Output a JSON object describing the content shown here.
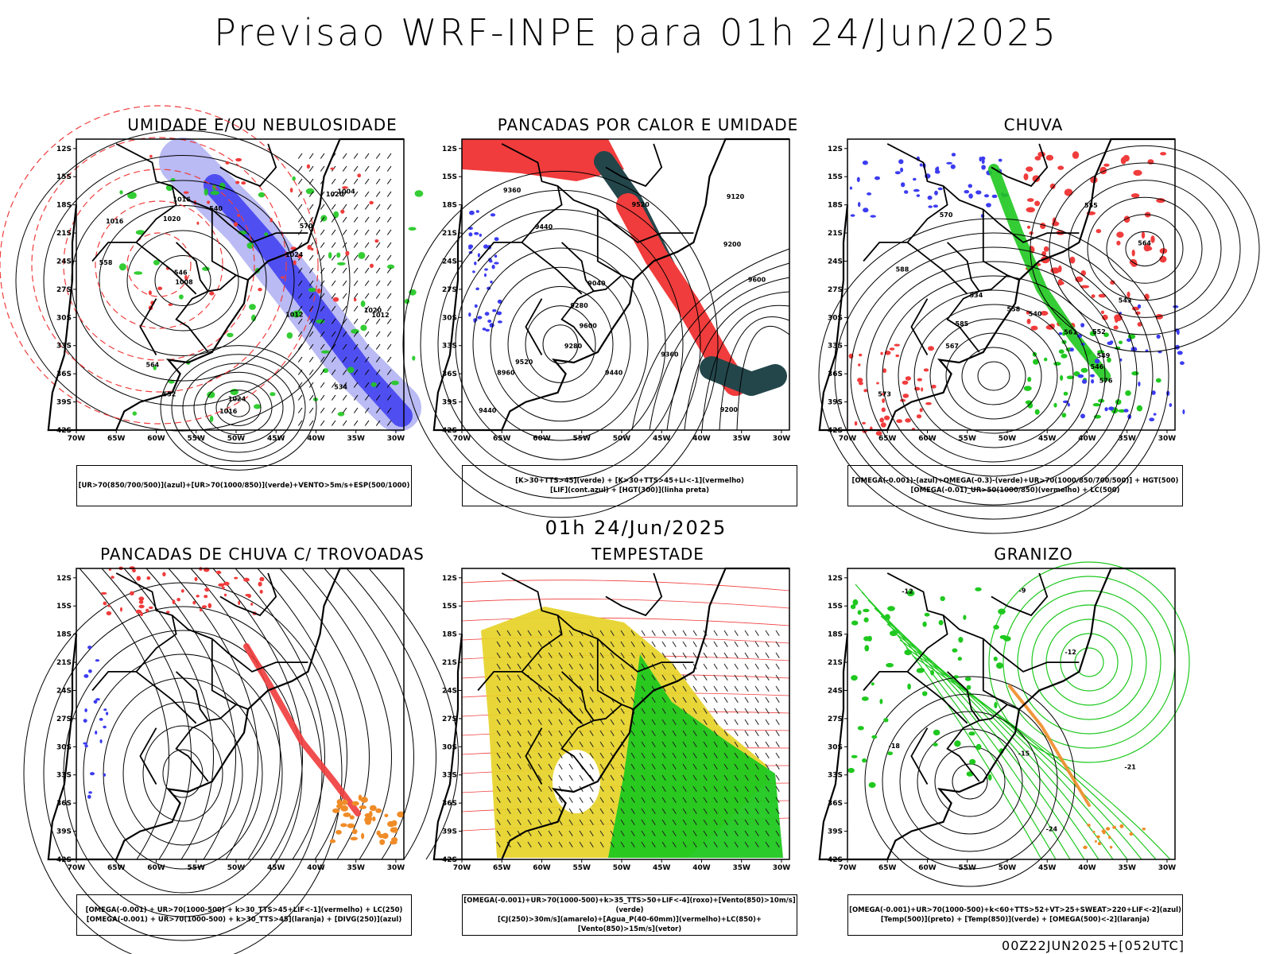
{
  "title": "Previsao WRF-INPE  para 01h 24/Jun/2025",
  "mid_title": "01h 24/Jun/2025",
  "footer": "00Z22JUN2025+[052UTC]",
  "axes": {
    "lat_labels": [
      "12S",
      "15S",
      "18S",
      "21S",
      "24S",
      "27S",
      "30S",
      "33S",
      "36S",
      "39S",
      "42S"
    ],
    "lon_labels": [
      "70W",
      "65W",
      "60W",
      "55W",
      "50W",
      "45W",
      "40W",
      "35W",
      "30W"
    ]
  },
  "colors": {
    "red": "#f03c3c",
    "green": "#1fc81f",
    "blue": "#3c3cf0",
    "lightblue": "#9c9cf0",
    "yellow": "#e6d228",
    "darkteal": "#23464b",
    "orange": "#f08c28"
  },
  "panels": [
    {
      "title": "UMIDADE E/OU NEBULOSIDADE",
      "legend": [
        "[UR>70(850/700/500)](azul)+[UR>70(1000/850)](verde)+VENTO>5m/s+ESP(500/1000)"
      ],
      "contour_labels": [
        "1016",
        "1020",
        "1024",
        "1024",
        "1020",
        "1016",
        "1012",
        "1008",
        "1004",
        "1012",
        "1020",
        "1016",
        "570",
        "564",
        "558",
        "552",
        "546",
        "540",
        "534"
      ]
    },
    {
      "title": "PANCADAS POR CALOR E UMIDADE",
      "legend": [
        "[K>30+TTS>45](verde) + [K>30+TTS>45+LI<-1](vermelho)",
        "[LIF](cont.azul) + [HGT(300)](linha preta)"
      ],
      "contour_labels": [
        "9600",
        "9520",
        "9440",
        "9360",
        "9280",
        "9200",
        "9120",
        "9040",
        "8960",
        "9440",
        "9520",
        "9600",
        "9280",
        "9200",
        "9360",
        "9440"
      ]
    },
    {
      "title": "CHUVA",
      "legend": [
        "[OMEGA(-0.001)-(azul)+OMEGA(-0.3)-(verde)+UR>70(1000/850/700/500)] + HGT(500)",
        "[OMEGA(-0.01)_UR>50(1000/850)(vermelho) + LC(500)"
      ],
      "contour_labels": [
        "576",
        "573",
        "570",
        "567",
        "564",
        "561",
        "558",
        "555",
        "552",
        "549",
        "546",
        "543",
        "540",
        "534",
        "585",
        "588"
      ]
    },
    {
      "title": "PANCADAS DE CHUVA C/ TROVOADAS",
      "legend": [
        "[OMEGA(-0.001) + UR>70(1000-500) + k>30_TTS>45+LIF<-1](vermelho) + LC(250)",
        "[OMEGA(-0.001) + UR>70(1000-500) + k>30_TTS>45](laranja) + [DIVG(250)](azul)"
      ],
      "contour_labels": []
    },
    {
      "title": "TEMPESTADE",
      "legend": [
        "[OMEGA(-0.001)+UR>70(1000-500)+k>35_TTS>50+LIF<-4](roxo)+[Vento(850)>10m/s](verde)",
        "[CJ(250)>30m/s](amarelo)+[Agua_P(40-60mm)](vermelho)+LC(850)+[Vento(850)>15m/s](vetor)"
      ],
      "contour_labels": []
    },
    {
      "title": "GRANIZO",
      "legend": [
        "[OMEGA(-0.001)+UR>70(1000-500)+k<60+TTS>52+VT>25+SWEAT>220+LIF<-2](azul)",
        "[Temp(500)](preto) + [Temp(850)](verde) + [OMEGA(500)<-2](laranja)"
      ],
      "contour_labels": [
        "-12",
        "-15",
        "-18",
        "-21",
        "-24",
        "-9",
        "-12"
      ]
    }
  ]
}
